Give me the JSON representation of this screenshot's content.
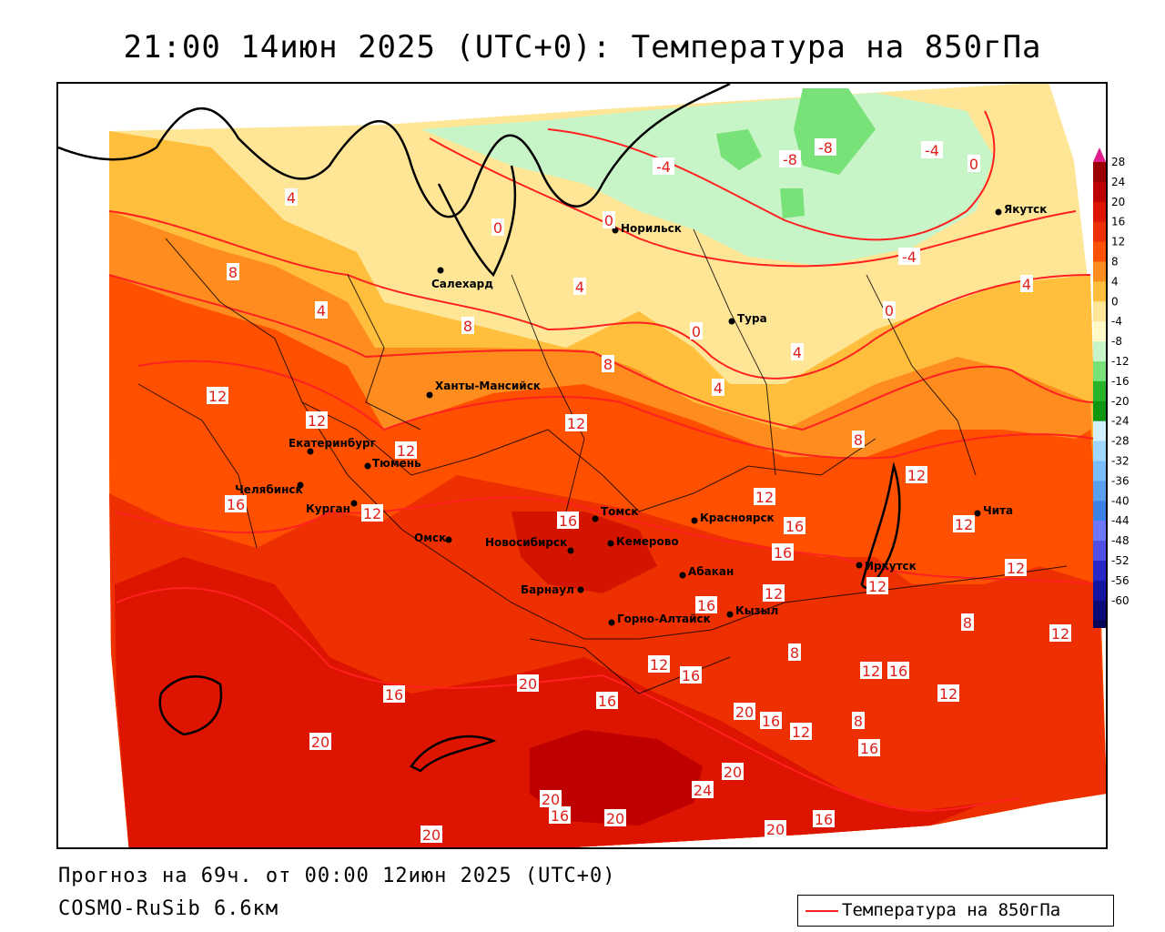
{
  "title": "21:00 14июн 2025 (UTC+0): Температура на 850гПа",
  "footer": {
    "forecast": "Прогноз на 69ч. от 00:00 12июн 2025 (UTC+0)",
    "model": "COSMO-RuSib 6.6км"
  },
  "legend": {
    "label": "Температура на 850гПа",
    "line_color": "#ff2020"
  },
  "colorbar": {
    "ticks": [
      "28",
      "24",
      "20",
      "16",
      "12",
      "8",
      "4",
      "0",
      "-4",
      "-8",
      "-12",
      "-16",
      "-20",
      "-24",
      "-28",
      "-32",
      "-36",
      "-40",
      "-44",
      "-48",
      "-52",
      "-56",
      "-60"
    ],
    "colors": [
      "#9b0000",
      "#be0000",
      "#dc1400",
      "#ee3000",
      "#ff5000",
      "#ff8c1e",
      "#ffbe3c",
      "#ffe696",
      "#fffac8",
      "#c8f5c8",
      "#78e178",
      "#28b428",
      "#109610",
      "#d2f0ff",
      "#a0d7ff",
      "#78beff",
      "#5aa0f0",
      "#3c82e6",
      "#6e78ff",
      "#5050e6",
      "#2828c8",
      "#1414a0",
      "#0a0a78",
      "#05055a"
    ],
    "top_arrow_color": "#e01e8c",
    "bottom_arrow_color": "#05055a"
  },
  "cities": [
    {
      "name": "Норильск"
    },
    {
      "name": "Якутск"
    },
    {
      "name": "Салехард"
    },
    {
      "name": "Тура"
    },
    {
      "name": "Ханты-Мансийск"
    },
    {
      "name": "Екатеринбург"
    },
    {
      "name": "Тюмень"
    },
    {
      "name": "Челябинск"
    },
    {
      "name": "Курган"
    },
    {
      "name": "Омск"
    },
    {
      "name": "Новосибирск"
    },
    {
      "name": "Томск"
    },
    {
      "name": "Кемерово"
    },
    {
      "name": "Красноярск"
    },
    {
      "name": "Барнаул"
    },
    {
      "name": "Абакан"
    },
    {
      "name": "Горно-Алтайск"
    },
    {
      "name": "Кызыл"
    },
    {
      "name": "Иркутск"
    },
    {
      "name": "Чита"
    }
  ],
  "contour_labels": [
    "4",
    "8",
    "4",
    "0",
    "-4",
    "0",
    "-8",
    "-8",
    "-4",
    "0",
    "-4",
    "4",
    "0",
    "4",
    "8",
    "0",
    "4",
    "12",
    "12",
    "4",
    "8",
    "12",
    "12",
    "8",
    "12",
    "12",
    "16",
    "12",
    "12",
    "16",
    "12",
    "16",
    "16",
    "12",
    "12",
    "16",
    "8",
    "12",
    "12",
    "20",
    "16",
    "16",
    "20",
    "16",
    "12",
    "12",
    "16",
    "12",
    "8",
    "20",
    "24",
    "16",
    "20",
    "16",
    "20",
    "16",
    "20",
    "20",
    "20",
    "16",
    "8"
  ]
}
